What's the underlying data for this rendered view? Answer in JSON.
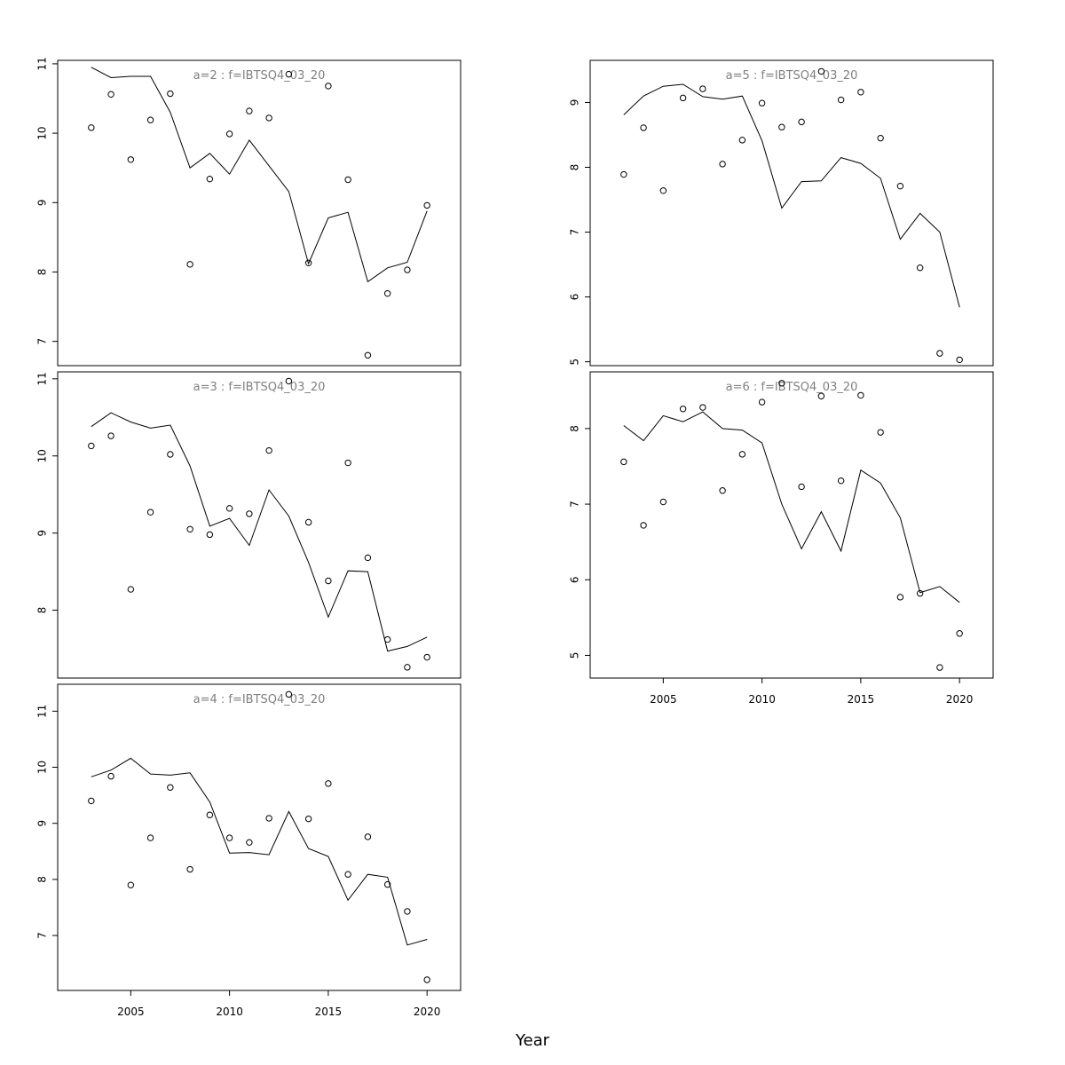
{
  "figure": {
    "xlabel": "Year"
  },
  "chart_data": [
    {
      "type": "line",
      "title": "a=2 : f=IBTSQ4_03_20",
      "x": [
        2003,
        2004,
        2005,
        2006,
        2007,
        2008,
        2009,
        2010,
        2011,
        2012,
        2013,
        2014,
        2015,
        2016,
        2017,
        2018,
        2019,
        2020
      ],
      "series": [
        {
          "kind": "line",
          "values": [
            10.95,
            10.8,
            10.82,
            10.82,
            10.3,
            9.5,
            9.71,
            9.41,
            9.9,
            9.53,
            9.16,
            8.12,
            8.78,
            8.86,
            7.86,
            8.06,
            8.14,
            8.88
          ]
        },
        {
          "kind": "points",
          "values": [
            10.08,
            10.56,
            9.62,
            10.19,
            10.57,
            8.11,
            9.34,
            9.99,
            10.32,
            10.22,
            10.85,
            8.13,
            10.68,
            9.33,
            6.8,
            7.69,
            8.03,
            8.96
          ]
        }
      ],
      "xlim": [
        2001.3,
        2021.7
      ],
      "ylim": [
        6.65,
        11.05
      ],
      "yticks": [
        7,
        8,
        9,
        10,
        11
      ],
      "xticks": [],
      "grid": false
    },
    {
      "type": "line",
      "title": "a=3 : f=IBTSQ4_03_20",
      "x": [
        2003,
        2004,
        2005,
        2006,
        2007,
        2008,
        2009,
        2010,
        2011,
        2012,
        2013,
        2014,
        2015,
        2016,
        2017,
        2018,
        2019,
        2020
      ],
      "series": [
        {
          "kind": "line",
          "values": [
            10.38,
            10.56,
            10.44,
            10.36,
            10.4,
            9.87,
            9.09,
            9.19,
            8.84,
            9.56,
            9.22,
            8.62,
            7.91,
            8.51,
            8.5,
            7.47,
            7.53,
            7.65
          ]
        },
        {
          "kind": "points",
          "values": [
            10.13,
            10.26,
            8.27,
            9.27,
            10.02,
            9.05,
            8.98,
            9.32,
            9.25,
            10.07,
            10.97,
            9.14,
            8.38,
            9.91,
            8.68,
            7.62,
            7.26,
            7.39
          ]
        }
      ],
      "xlim": [
        2001.3,
        2021.7
      ],
      "ylim": [
        7.12,
        11.09
      ],
      "yticks": [
        8,
        9,
        10,
        11
      ],
      "xticks": [],
      "grid": false
    },
    {
      "type": "line",
      "title": "a=4 : f=IBTSQ4_03_20",
      "x": [
        2003,
        2004,
        2005,
        2006,
        2007,
        2008,
        2009,
        2010,
        2011,
        2012,
        2013,
        2014,
        2015,
        2016,
        2017,
        2018,
        2019,
        2020
      ],
      "series": [
        {
          "kind": "line",
          "values": [
            9.83,
            9.95,
            10.16,
            9.88,
            9.86,
            9.9,
            9.38,
            8.47,
            8.48,
            8.44,
            9.21,
            8.55,
            8.41,
            7.63,
            8.09,
            8.04,
            6.83,
            6.93
          ]
        },
        {
          "kind": "points",
          "values": [
            9.4,
            9.84,
            7.9,
            8.74,
            9.64,
            8.18,
            9.15,
            8.74,
            8.66,
            9.09,
            11.3,
            9.08,
            9.71,
            8.09,
            8.76,
            7.91,
            7.43,
            6.21
          ]
        }
      ],
      "xlim": [
        2001.3,
        2021.7
      ],
      "ylim": [
        6.02,
        11.48
      ],
      "yticks": [
        7,
        8,
        9,
        10,
        11
      ],
      "xticks": [
        2005,
        2010,
        2015,
        2020
      ],
      "grid": false
    },
    {
      "type": "line",
      "title": "a=5 : f=IBTSQ4_03_20",
      "x": [
        2003,
        2004,
        2005,
        2006,
        2007,
        2008,
        2009,
        2010,
        2011,
        2012,
        2013,
        2014,
        2015,
        2016,
        2017,
        2018,
        2019,
        2020
      ],
      "series": [
        {
          "kind": "line",
          "values": [
            8.81,
            9.1,
            9.25,
            9.28,
            9.09,
            9.05,
            9.1,
            8.41,
            7.37,
            7.78,
            7.79,
            8.15,
            8.06,
            7.83,
            6.89,
            7.29,
            7.0,
            5.84
          ]
        },
        {
          "kind": "points",
          "values": [
            7.89,
            8.61,
            7.64,
            9.07,
            9.21,
            8.05,
            8.42,
            8.99,
            8.62,
            8.7,
            9.48,
            9.04,
            9.16,
            8.45,
            7.71,
            6.45,
            5.13,
            5.03
          ]
        }
      ],
      "xlim": [
        2001.3,
        2021.7
      ],
      "ylim": [
        4.94,
        9.65
      ],
      "yticks": [
        5,
        6,
        7,
        8,
        9
      ],
      "xticks": [],
      "grid": false
    },
    {
      "type": "line",
      "title": "a=6 : f=IBTSQ4_03_20",
      "x": [
        2003,
        2004,
        2005,
        2006,
        2007,
        2008,
        2009,
        2010,
        2011,
        2012,
        2013,
        2014,
        2015,
        2016,
        2017,
        2018,
        2019,
        2020
      ],
      "series": [
        {
          "kind": "line",
          "values": [
            8.04,
            7.84,
            8.17,
            8.09,
            8.22,
            8.0,
            7.98,
            7.81,
            7.0,
            6.41,
            6.9,
            6.38,
            7.45,
            7.28,
            6.82,
            5.83,
            5.91,
            5.7
          ]
        },
        {
          "kind": "points",
          "values": [
            7.56,
            6.72,
            7.03,
            8.26,
            8.28,
            7.18,
            7.66,
            8.35,
            8.6,
            7.23,
            8.43,
            7.31,
            8.44,
            7.95,
            5.77,
            5.82,
            4.84,
            5.29
          ]
        }
      ],
      "xlim": [
        2001.3,
        2021.7
      ],
      "ylim": [
        4.7,
        8.75
      ],
      "yticks": [
        5,
        6,
        7,
        8
      ],
      "xticks": [
        2005,
        2010,
        2015,
        2020
      ],
      "grid": false
    }
  ]
}
